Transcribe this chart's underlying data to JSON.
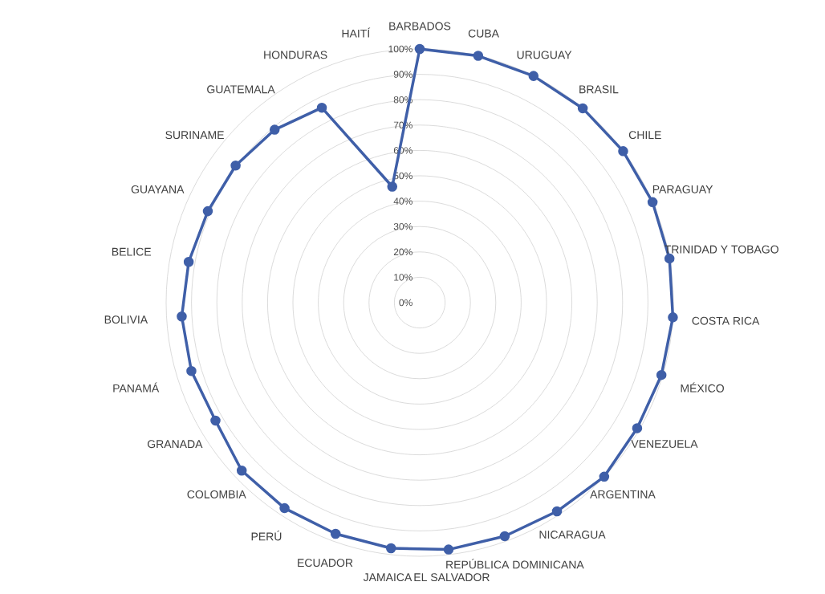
{
  "chart_data": {
    "type": "radar",
    "categories": [
      "BARBADOS",
      "CUBA",
      "URUGUAY",
      "BRASIL",
      "CHILE",
      "PARAGUAY",
      "TRINIDAD Y TOBAGO",
      "COSTA RICA",
      "MÉXICO",
      "VENEZUELA",
      "ARGENTINA",
      "NICARAGUA",
      "REPÚBLICA DOMINICANA",
      "EL SALVADOR",
      "JAMAICA",
      "ECUADOR",
      "PERÚ",
      "COLOMBIA",
      "GRANADA",
      "PANAMÁ",
      "BOLIVIA",
      "BELICE",
      "GUAYANA",
      "SURINAME",
      "GUATEMALA",
      "HONDURAS",
      "HAITÍ"
    ],
    "series": [
      {
        "color": "#3f5fa8",
        "values": [
          100,
          100,
          100,
          100,
          100,
          100,
          100,
          100,
          99.5,
          99,
          100,
          98.5,
          98,
          98,
          97.5,
          97,
          97,
          96.5,
          93,
          94,
          94,
          92.5,
          91,
          90.5,
          89,
          86,
          47
        ]
      }
    ],
    "ylim": [
      0,
      100
    ],
    "yticks": [
      {
        "value": 0,
        "label": "0%"
      },
      {
        "value": 10,
        "label": "10%"
      },
      {
        "value": 20,
        "label": "20%"
      },
      {
        "value": 30,
        "label": "30%"
      },
      {
        "value": 40,
        "label": "40%"
      },
      {
        "value": 50,
        "label": "50%"
      },
      {
        "value": 60,
        "label": "60%"
      },
      {
        "value": 70,
        "label": "70%"
      },
      {
        "value": 80,
        "label": "80%"
      },
      {
        "value": 90,
        "label": "90%"
      },
      {
        "value": 100,
        "label": "100%"
      }
    ],
    "grid": true,
    "marker": "circle"
  }
}
